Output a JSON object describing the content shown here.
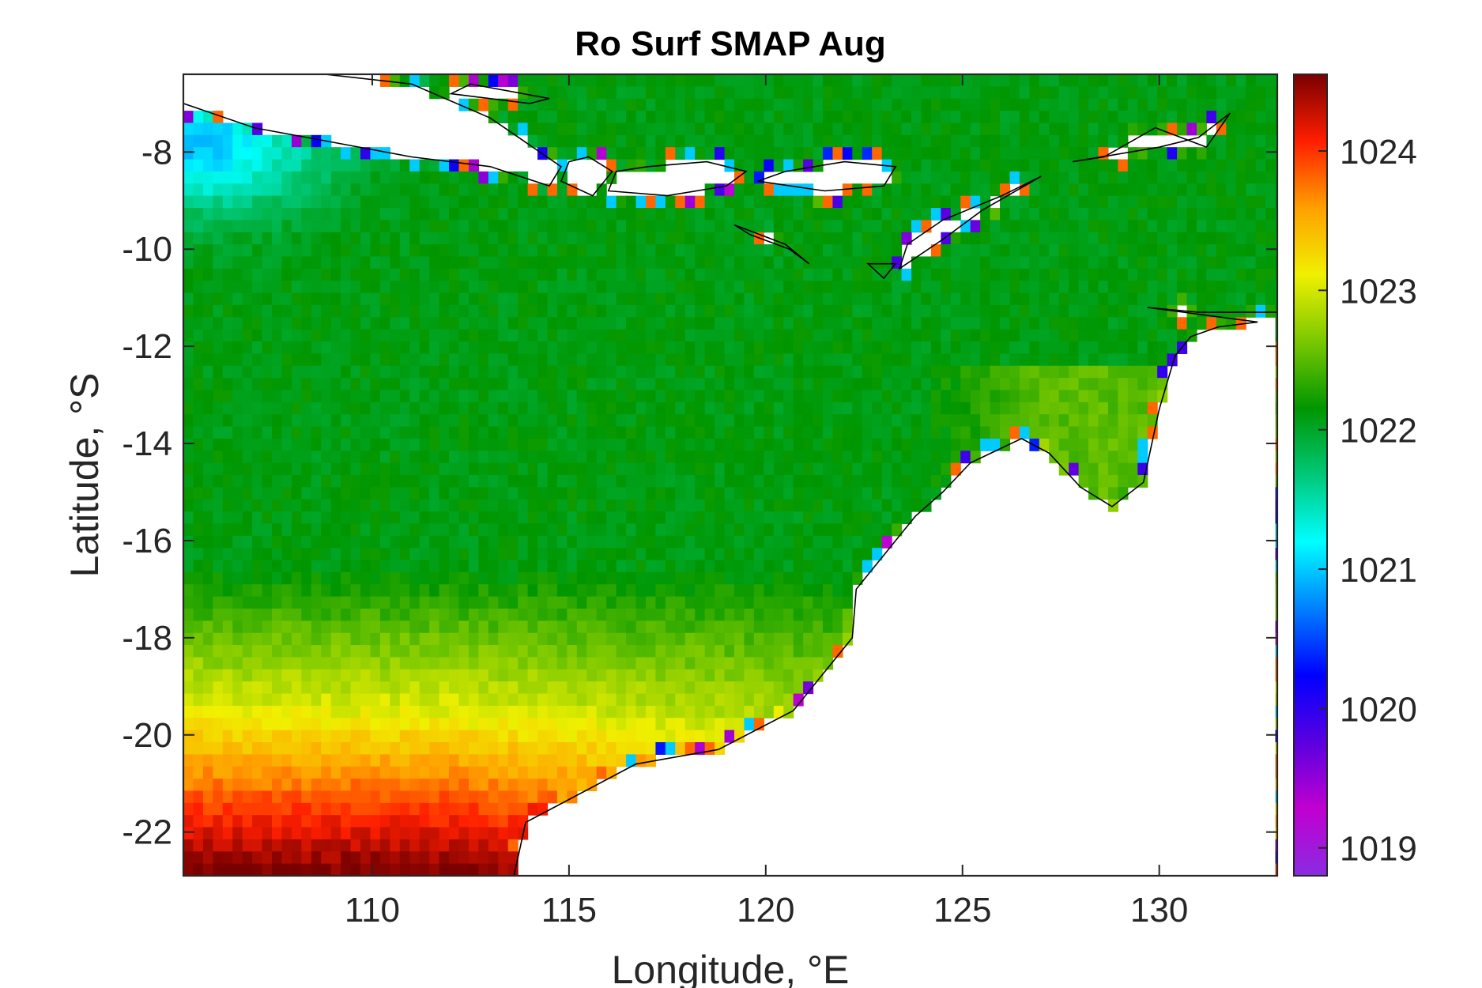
{
  "chart_data": {
    "type": "heatmap",
    "title": "Ro Surf SMAP Aug",
    "xlabel": "Longitude, °E",
    "ylabel": "Latitude, °S",
    "xlim": [
      105.2,
      133
    ],
    "ylim": [
      -22.9,
      -6.4
    ],
    "xticks": [
      110,
      115,
      120,
      125,
      130
    ],
    "xtick_labels": [
      "110",
      "115",
      "120",
      "125",
      "130"
    ],
    "yticks": [
      -8,
      -10,
      -12,
      -14,
      -16,
      -18,
      -20,
      -22
    ],
    "ytick_labels": [
      "-8",
      "-10",
      "-12",
      "-14",
      "-16",
      "-18",
      "-20",
      "-22"
    ],
    "colorbar": {
      "range": [
        1018.8,
        1024.55
      ],
      "ticks": [
        1019,
        1020,
        1021,
        1022,
        1023,
        1024
      ],
      "tick_labels": [
        "1019",
        "1020",
        "1021",
        "1022",
        "1023",
        "1024"
      ],
      "colormap": [
        "#8a2be2",
        "#c000d0",
        "#5a00e0",
        "#0000ff",
        "#0080ff",
        "#00ffff",
        "#00c878",
        "#009600",
        "#7ac800",
        "#f0f000",
        "#ffa000",
        "#ff1e00",
        "#7a0000"
      ]
    },
    "grid_resolution_deg": 0.25,
    "field_description_values": {
      "north_west_corner_value": 1021.2,
      "central_band_value": 1022.1,
      "latitude_17S_value": 1023.0,
      "south_west_corner_value": 1024.2
    },
    "grid": false,
    "land_color": "#ffffff"
  }
}
